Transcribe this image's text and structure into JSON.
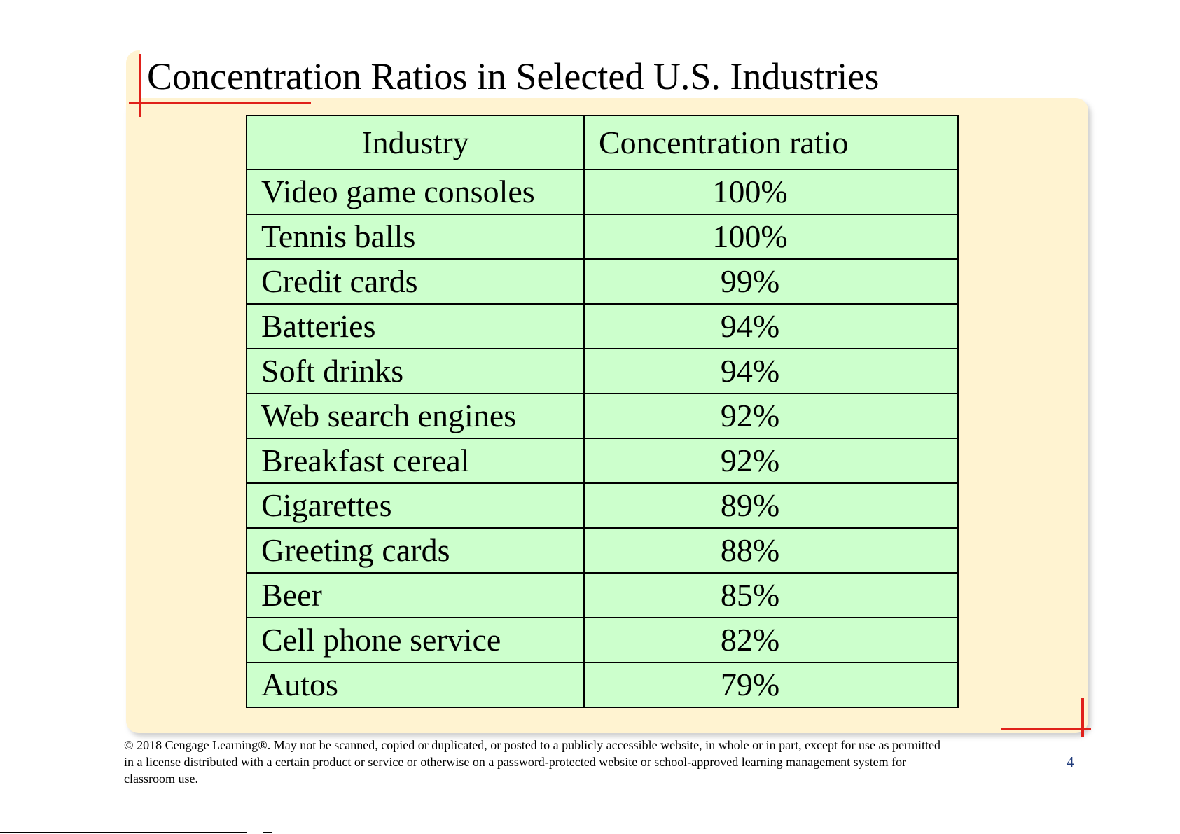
{
  "slide": {
    "title": "Concentration Ratios in Selected U.S. Industries",
    "page_number": "4",
    "copyright": "© 2018 Cengage Learning®. May not be scanned, copied or duplicated, or posted to a publicly accessible website, in whole or in part, except for use as permitted in a license distributed with a certain product or service or otherwise on a password-protected website or school-approved learning management system for classroom use."
  },
  "table": {
    "headers": {
      "industry": "Industry",
      "ratio": "Concentration ratio"
    },
    "rows": [
      {
        "industry": "Video game consoles",
        "ratio": "100%"
      },
      {
        "industry": "Tennis balls",
        "ratio": "100%"
      },
      {
        "industry": "Credit cards",
        "ratio": "99%"
      },
      {
        "industry": "Batteries",
        "ratio": "94%"
      },
      {
        "industry": "Soft drinks",
        "ratio": "94%"
      },
      {
        "industry": "Web search engines",
        "ratio": "92%"
      },
      {
        "industry": "Breakfast cereal",
        "ratio": "92%"
      },
      {
        "industry": "Cigarettes",
        "ratio": "89%"
      },
      {
        "industry": "Greeting cards",
        "ratio": "88%"
      },
      {
        "industry": "Beer",
        "ratio": "85%"
      },
      {
        "industry": "Cell phone service",
        "ratio": "82%"
      },
      {
        "industry": "Autos",
        "ratio": "79%"
      }
    ]
  },
  "colors": {
    "panel_background": "#fff3d1",
    "table_background": "#ccffcc",
    "accent_marks": "#e0201a",
    "page_number": "#1f3a7a"
  }
}
